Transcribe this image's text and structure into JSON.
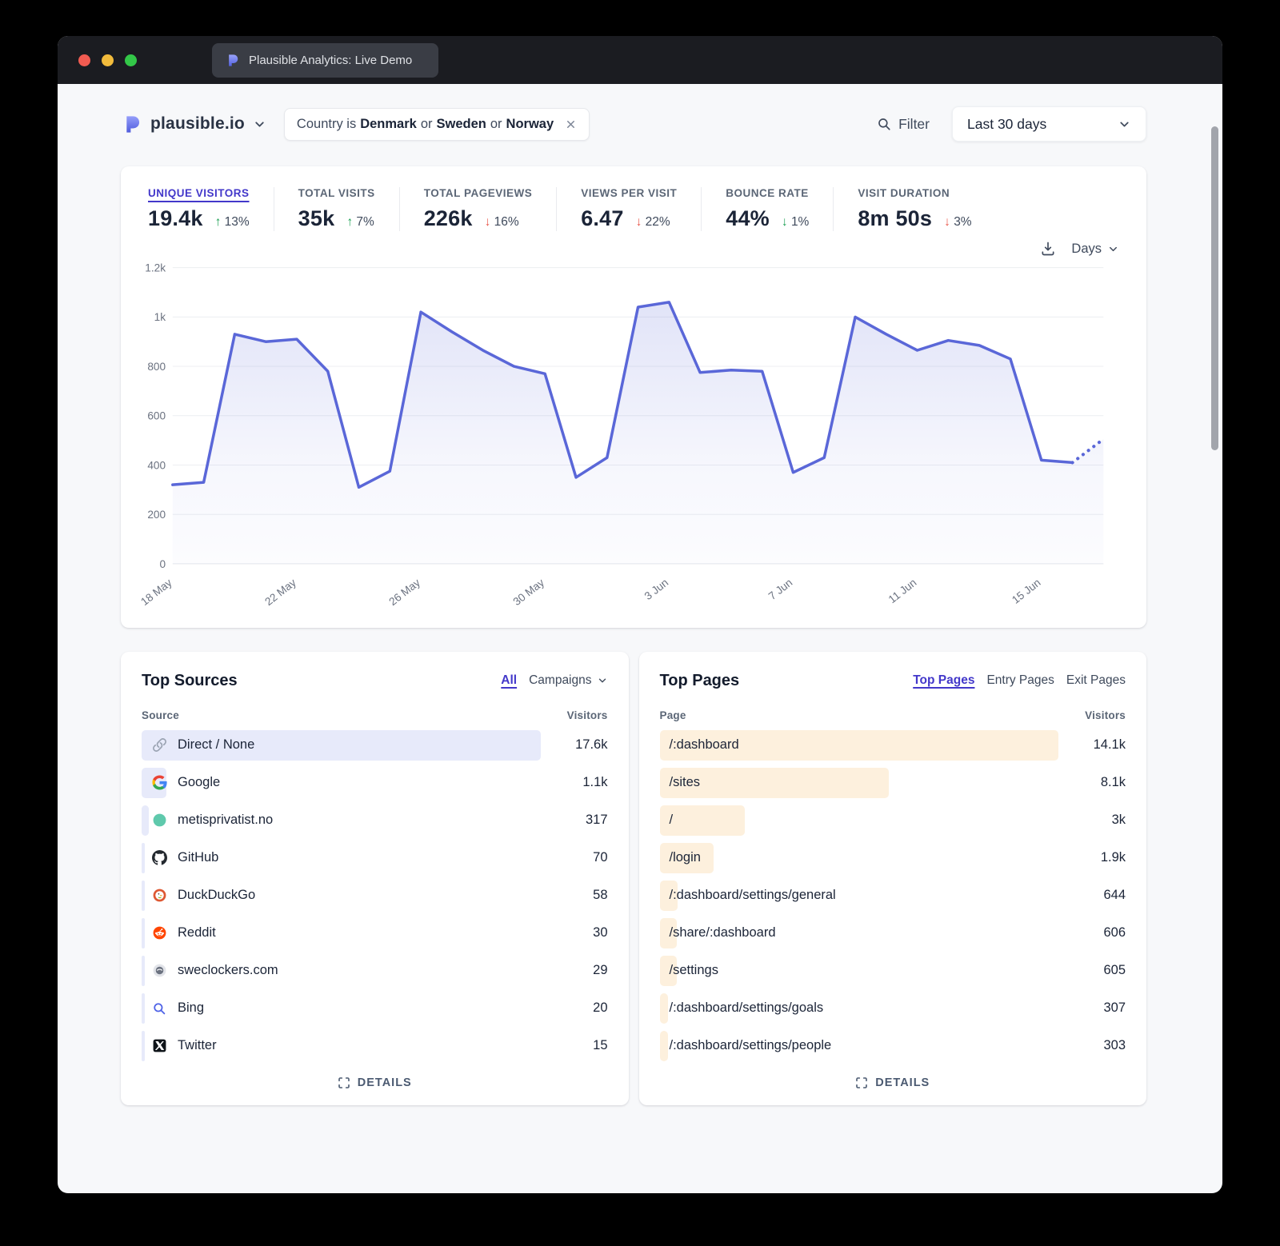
{
  "browser": {
    "tab_title": "Plausible Analytics: Live Demo"
  },
  "header": {
    "site_name": "plausible.io",
    "filter_parts": [
      "Country is",
      "Denmark",
      "or",
      "Sweden",
      "or",
      "Norway"
    ],
    "filter_button_label": "Filter",
    "date_range": "Last 30 days"
  },
  "stats": [
    {
      "label": "UNIQUE VISITORS",
      "value": "19.4k",
      "arrow": "↑",
      "change": "13%",
      "change_class": "green",
      "active": true
    },
    {
      "label": "TOTAL VISITS",
      "value": "35k",
      "arrow": "↑",
      "change": "7%",
      "change_class": "green"
    },
    {
      "label": "TOTAL PAGEVIEWS",
      "value": "226k",
      "arrow": "↓",
      "change": "16%",
      "change_class": "red"
    },
    {
      "label": "VIEWS PER VISIT",
      "value": "6.47",
      "arrow": "↓",
      "change": "22%",
      "change_class": "red"
    },
    {
      "label": "BOUNCE RATE",
      "value": "44%",
      "arrow": "↓",
      "change": "1%",
      "change_class": "green"
    },
    {
      "label": "VISIT DURATION",
      "value": "8m 50s",
      "arrow": "↓",
      "change": "3%",
      "change_class": "red"
    }
  ],
  "chart_controls": {
    "interval_label": "Days"
  },
  "chart_data": {
    "type": "area",
    "title": "Unique visitors over last 30 days",
    "x": [
      "18 May",
      "19 May",
      "20 May",
      "21 May",
      "22 May",
      "23 May",
      "24 May",
      "25 May",
      "26 May",
      "27 May",
      "28 May",
      "29 May",
      "30 May",
      "31 May",
      "1 Jun",
      "2 Jun",
      "3 Jun",
      "4 Jun",
      "5 Jun",
      "6 Jun",
      "7 Jun",
      "8 Jun",
      "9 Jun",
      "10 Jun",
      "11 Jun",
      "12 Jun",
      "13 Jun",
      "14 Jun",
      "15 Jun",
      "16 Jun",
      "17 Jun"
    ],
    "series": [
      {
        "name": "Unique visitors",
        "values": [
          320,
          330,
          930,
          900,
          910,
          780,
          310,
          375,
          1020,
          940,
          865,
          800,
          770,
          350,
          430,
          1040,
          1060,
          775,
          785,
          780,
          370,
          430,
          1000,
          930,
          865,
          905,
          885,
          830,
          420,
          410,
          505
        ]
      }
    ],
    "dashed_from_index": 29,
    "ylim": [
      0,
      1200
    ],
    "yticks": [
      "0",
      "200",
      "400",
      "600",
      "800",
      "1k",
      "1.2k"
    ],
    "xtick_labels": [
      "18 May",
      "22 May",
      "26 May",
      "30 May",
      "3 Jun",
      "7 Jun",
      "11 Jun",
      "15 Jun"
    ],
    "xtick_indices": [
      0,
      4,
      8,
      12,
      16,
      20,
      24,
      28
    ],
    "grid": true,
    "legend": "none",
    "line_color": "#5a67d8"
  },
  "top_sources": {
    "title": "Top Sources",
    "controls": {
      "all_label": "All",
      "campaigns_label": "Campaigns"
    },
    "columns": {
      "name": "Source",
      "visitors": "Visitors"
    },
    "rows": [
      {
        "icon": "link-icon",
        "label": "Direct / None",
        "visitors": "17.6k"
      },
      {
        "icon": "google-icon",
        "label": "Google",
        "visitors": "1.1k"
      },
      {
        "icon": "favicon-dot",
        "label": "metisprivatist.no",
        "visitors": "317"
      },
      {
        "icon": "github-icon",
        "label": "GitHub",
        "visitors": "70"
      },
      {
        "icon": "duckduckgo-icon",
        "label": "DuckDuckGo",
        "visitors": "58"
      },
      {
        "icon": "reddit-icon",
        "label": "Reddit",
        "visitors": "30"
      },
      {
        "icon": "sweclockers-icon",
        "label": "sweclockers.com",
        "visitors": "29"
      },
      {
        "icon": "bing-icon",
        "label": "Bing",
        "visitors": "20"
      },
      {
        "icon": "twitter-x-icon",
        "label": "Twitter",
        "visitors": "15"
      }
    ],
    "details_label": "DETAILS"
  },
  "top_pages": {
    "title": "Top Pages",
    "tabs": [
      "Top Pages",
      "Entry Pages",
      "Exit Pages"
    ],
    "active_tab": "Top Pages",
    "columns": {
      "name": "Page",
      "visitors": "Visitors"
    },
    "rows": [
      {
        "label": "/:dashboard",
        "visitors": "14.1k"
      },
      {
        "label": "/sites",
        "visitors": "8.1k"
      },
      {
        "label": "/",
        "visitors": "3k"
      },
      {
        "label": "/login",
        "visitors": "1.9k"
      },
      {
        "label": "/:dashboard/settings/general",
        "visitors": "644"
      },
      {
        "label": "/share/:dashboard",
        "visitors": "606"
      },
      {
        "label": "/settings",
        "visitors": "605"
      },
      {
        "label": "/:dashboard/settings/goals",
        "visitors": "307"
      },
      {
        "label": "/:dashboard/settings/people",
        "visitors": "303"
      }
    ],
    "details_label": "DETAILS"
  },
  "colors": {
    "accent": "#5a67d8",
    "active_tab_underline": "#4338ca",
    "source_bar": "#e7eafa",
    "page_bar": "#fdf0dd",
    "positive": "#1da154",
    "negative": "#e8564a"
  }
}
